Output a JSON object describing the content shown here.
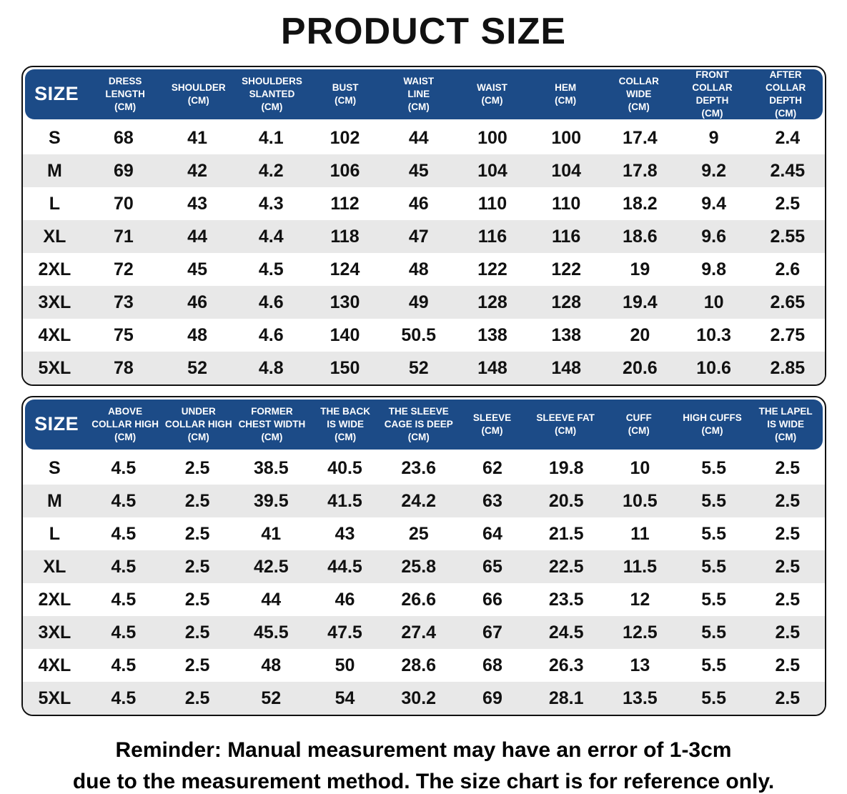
{
  "page_title": "PRODUCT SIZE",
  "colors": {
    "header_bg": "#1c4b87",
    "header_text": "#ffffff",
    "row_alt_bg": "#e8e8e8",
    "border": "#111111"
  },
  "tables": [
    {
      "name": "upper-size-table",
      "columns": [
        {
          "lines": [
            "SIZE"
          ]
        },
        {
          "lines": [
            "DRESS",
            "LENGTH",
            "(CM)"
          ]
        },
        {
          "lines": [
            "SHOULDER",
            "(CM)"
          ]
        },
        {
          "lines": [
            "SHOULDERS",
            "SLANTED",
            "(CM)"
          ]
        },
        {
          "lines": [
            "BUST",
            "(CM)"
          ]
        },
        {
          "lines": [
            "WAIST",
            "LINE",
            "(CM)"
          ]
        },
        {
          "lines": [
            "WAIST",
            "(CM)"
          ]
        },
        {
          "lines": [
            "HEM",
            "(CM)"
          ]
        },
        {
          "lines": [
            "COLLAR",
            "WIDE",
            "(CM)"
          ]
        },
        {
          "lines": [
            "FRONT",
            "COLLAR DEPTH",
            "(CM)"
          ]
        },
        {
          "lines": [
            "AFTER",
            "COLLAR DEPTH",
            "(CM)"
          ]
        }
      ],
      "rows": [
        {
          "size": "S",
          "values": [
            "68",
            "41",
            "4.1",
            "102",
            "44",
            "100",
            "100",
            "17.4",
            "9",
            "2.4"
          ]
        },
        {
          "size": "M",
          "values": [
            "69",
            "42",
            "4.2",
            "106",
            "45",
            "104",
            "104",
            "17.8",
            "9.2",
            "2.45"
          ]
        },
        {
          "size": "L",
          "values": [
            "70",
            "43",
            "4.3",
            "112",
            "46",
            "110",
            "110",
            "18.2",
            "9.4",
            "2.5"
          ]
        },
        {
          "size": "XL",
          "values": [
            "71",
            "44",
            "4.4",
            "118",
            "47",
            "116",
            "116",
            "18.6",
            "9.6",
            "2.55"
          ]
        },
        {
          "size": "2XL",
          "values": [
            "72",
            "45",
            "4.5",
            "124",
            "48",
            "122",
            "122",
            "19",
            "9.8",
            "2.6"
          ]
        },
        {
          "size": "3XL",
          "values": [
            "73",
            "46",
            "4.6",
            "130",
            "49",
            "128",
            "128",
            "19.4",
            "10",
            "2.65"
          ]
        },
        {
          "size": "4XL",
          "values": [
            "75",
            "48",
            "4.6",
            "140",
            "50.5",
            "138",
            "138",
            "20",
            "10.3",
            "2.75"
          ]
        },
        {
          "size": "5XL",
          "values": [
            "78",
            "52",
            "4.8",
            "150",
            "52",
            "148",
            "148",
            "20.6",
            "10.6",
            "2.85"
          ]
        }
      ]
    },
    {
      "name": "lower-size-table",
      "columns": [
        {
          "lines": [
            "SIZE"
          ]
        },
        {
          "lines": [
            "ABOVE",
            "COLLAR HIGH",
            "(CM)"
          ]
        },
        {
          "lines": [
            "UNDER",
            "COLLAR HIGH",
            "(CM)"
          ]
        },
        {
          "lines": [
            "FORMER",
            "CHEST WIDTH",
            "(CM)"
          ]
        },
        {
          "lines": [
            "THE BACK",
            "IS WIDE",
            "(CM)"
          ]
        },
        {
          "lines": [
            "THE SLEEVE",
            "CAGE IS DEEP",
            "(CM)"
          ]
        },
        {
          "lines": [
            "SLEEVE",
            "(CM)"
          ]
        },
        {
          "lines": [
            "SLEEVE FAT",
            "(CM)"
          ]
        },
        {
          "lines": [
            "CUFF",
            "(CM)"
          ]
        },
        {
          "lines": [
            "HIGH CUFFS",
            "(CM)"
          ]
        },
        {
          "lines": [
            "THE LAPEL",
            "IS WIDE",
            "(CM)"
          ]
        }
      ],
      "rows": [
        {
          "size": "S",
          "values": [
            "4.5",
            "2.5",
            "38.5",
            "40.5",
            "23.6",
            "62",
            "19.8",
            "10",
            "5.5",
            "2.5"
          ]
        },
        {
          "size": "M",
          "values": [
            "4.5",
            "2.5",
            "39.5",
            "41.5",
            "24.2",
            "63",
            "20.5",
            "10.5",
            "5.5",
            "2.5"
          ]
        },
        {
          "size": "L",
          "values": [
            "4.5",
            "2.5",
            "41",
            "43",
            "25",
            "64",
            "21.5",
            "11",
            "5.5",
            "2.5"
          ]
        },
        {
          "size": "XL",
          "values": [
            "4.5",
            "2.5",
            "42.5",
            "44.5",
            "25.8",
            "65",
            "22.5",
            "11.5",
            "5.5",
            "2.5"
          ]
        },
        {
          "size": "2XL",
          "values": [
            "4.5",
            "2.5",
            "44",
            "46",
            "26.6",
            "66",
            "23.5",
            "12",
            "5.5",
            "2.5"
          ]
        },
        {
          "size": "3XL",
          "values": [
            "4.5",
            "2.5",
            "45.5",
            "47.5",
            "27.4",
            "67",
            "24.5",
            "12.5",
            "5.5",
            "2.5"
          ]
        },
        {
          "size": "4XL",
          "values": [
            "4.5",
            "2.5",
            "48",
            "50",
            "28.6",
            "68",
            "26.3",
            "13",
            "5.5",
            "2.5"
          ]
        },
        {
          "size": "5XL",
          "values": [
            "4.5",
            "2.5",
            "52",
            "54",
            "30.2",
            "69",
            "28.1",
            "13.5",
            "5.5",
            "2.5"
          ]
        }
      ]
    }
  ],
  "reminder": {
    "line1": "Reminder: Manual measurement may have an error of 1-3cm",
    "line2": "due to the measurement method. The size chart is for reference only."
  }
}
